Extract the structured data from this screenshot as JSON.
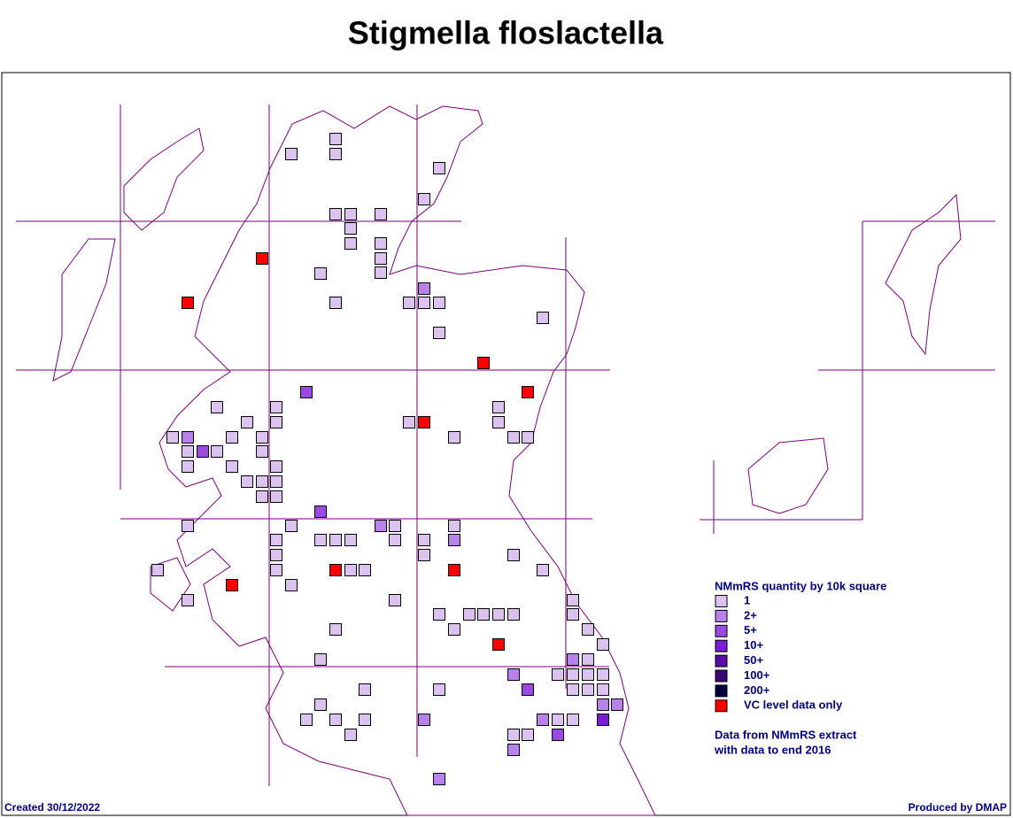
{
  "title": "Stigmella floslactella",
  "legend": {
    "title": "NMmRS quantity by 10k square",
    "items": [
      {
        "label": "1",
        "color": "#dcc3ef"
      },
      {
        "label": "2+",
        "color": "#b982ea"
      },
      {
        "label": "5+",
        "color": "#9a4ae2"
      },
      {
        "label": "10+",
        "color": "#7a1cd6"
      },
      {
        "label": "50+",
        "color": "#5c0aa8"
      },
      {
        "label": "100+",
        "color": "#3a0670"
      },
      {
        "label": "200+",
        "color": "#000040"
      },
      {
        "label": "VC level data only",
        "color": "#ff0000"
      }
    ]
  },
  "notes": [
    "Data from NMmRS extract",
    "with data to end 2016"
  ],
  "footer": {
    "created": "Created 30/12/2022",
    "produced": "Produced by DMAP"
  }
}
